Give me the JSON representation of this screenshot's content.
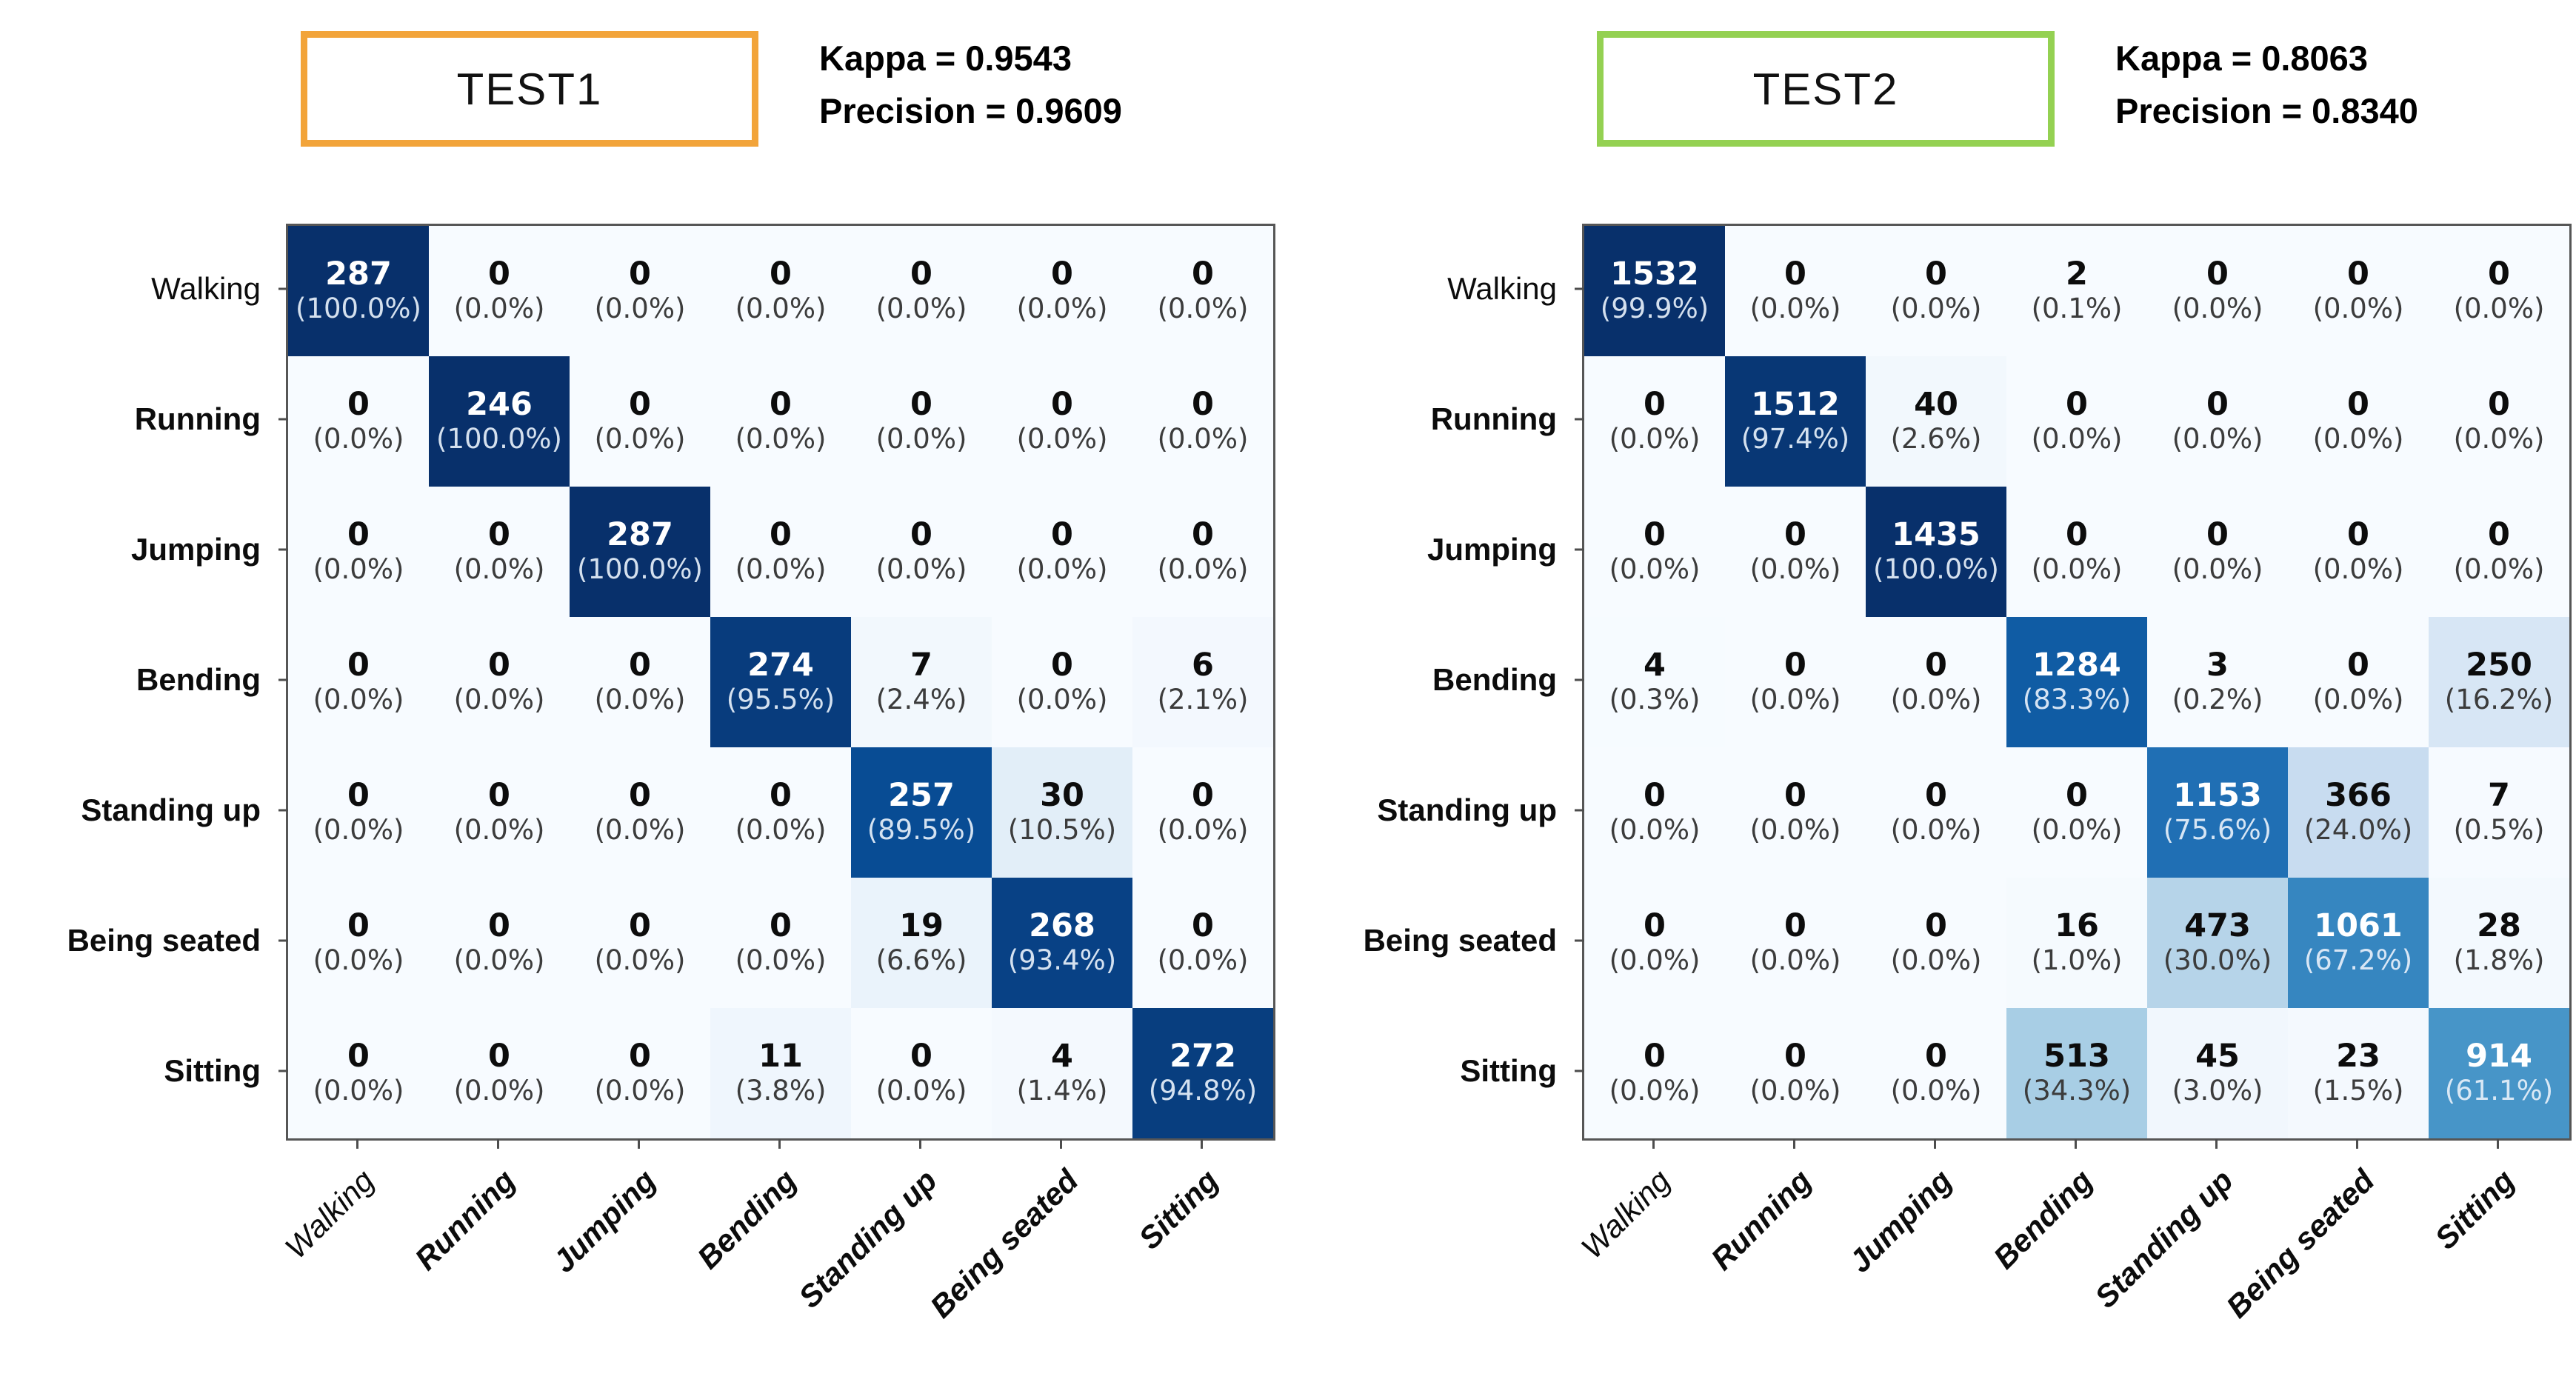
{
  "page": {
    "background": "#ffffff"
  },
  "chart_data": [
    {
      "type": "heatmap",
      "panel_label": "TEST1",
      "accent_color": "#F2A43A",
      "metrics": {
        "kappa_text": "Kappa = 0.9543",
        "precision_text": "Precision = 0.9609"
      },
      "categories": [
        "Walking",
        "Running",
        "Jumping",
        "Bending",
        "Standing up",
        "Being seated",
        "Sitting"
      ],
      "colormap": "Blues",
      "cell_format": "count over (percent)",
      "x_label_rotation_deg": 45,
      "counts": [
        [
          287,
          0,
          0,
          0,
          0,
          0,
          0
        ],
        [
          0,
          246,
          0,
          0,
          0,
          0,
          0
        ],
        [
          0,
          0,
          287,
          0,
          0,
          0,
          0
        ],
        [
          0,
          0,
          0,
          274,
          7,
          0,
          6
        ],
        [
          0,
          0,
          0,
          0,
          257,
          30,
          0
        ],
        [
          0,
          0,
          0,
          0,
          19,
          268,
          0
        ],
        [
          0,
          0,
          0,
          11,
          0,
          4,
          272
        ]
      ],
      "percents": [
        [
          100.0,
          0.0,
          0.0,
          0.0,
          0.0,
          0.0,
          0.0
        ],
        [
          0.0,
          100.0,
          0.0,
          0.0,
          0.0,
          0.0,
          0.0
        ],
        [
          0.0,
          0.0,
          100.0,
          0.0,
          0.0,
          0.0,
          0.0
        ],
        [
          0.0,
          0.0,
          0.0,
          95.5,
          2.4,
          0.0,
          2.1
        ],
        [
          0.0,
          0.0,
          0.0,
          0.0,
          89.5,
          10.5,
          0.0
        ],
        [
          0.0,
          0.0,
          0.0,
          0.0,
          6.6,
          93.4,
          0.0
        ],
        [
          0.0,
          0.0,
          0.0,
          3.8,
          0.0,
          1.4,
          94.8
        ]
      ]
    },
    {
      "type": "heatmap",
      "panel_label": "TEST2",
      "accent_color": "#94D152",
      "metrics": {
        "kappa_text": "Kappa = 0.8063",
        "precision_text": "Precision = 0.8340"
      },
      "categories": [
        "Walking",
        "Running",
        "Jumping",
        "Bending",
        "Standing up",
        "Being seated",
        "Sitting"
      ],
      "colormap": "Blues",
      "cell_format": "count over (percent)",
      "x_label_rotation_deg": 45,
      "counts": [
        [
          1532,
          0,
          0,
          2,
          0,
          0,
          0
        ],
        [
          0,
          1512,
          40,
          0,
          0,
          0,
          0
        ],
        [
          0,
          0,
          1435,
          0,
          0,
          0,
          0
        ],
        [
          4,
          0,
          0,
          1284,
          3,
          0,
          250
        ],
        [
          0,
          0,
          0,
          0,
          1153,
          366,
          7
        ],
        [
          0,
          0,
          0,
          16,
          473,
          1061,
          28
        ],
        [
          0,
          0,
          0,
          513,
          45,
          23,
          914
        ]
      ],
      "percents": [
        [
          99.9,
          0.0,
          0.0,
          0.1,
          0.0,
          0.0,
          0.0
        ],
        [
          0.0,
          97.4,
          2.6,
          0.0,
          0.0,
          0.0,
          0.0
        ],
        [
          0.0,
          0.0,
          100.0,
          0.0,
          0.0,
          0.0,
          0.0
        ],
        [
          0.3,
          0.0,
          0.0,
          83.3,
          0.2,
          0.0,
          16.2
        ],
        [
          0.0,
          0.0,
          0.0,
          0.0,
          75.6,
          24.0,
          0.5
        ],
        [
          0.0,
          0.0,
          0.0,
          1.0,
          30.0,
          67.2,
          1.8
        ],
        [
          0.0,
          0.0,
          0.0,
          34.3,
          3.0,
          1.5,
          61.1
        ]
      ]
    }
  ]
}
